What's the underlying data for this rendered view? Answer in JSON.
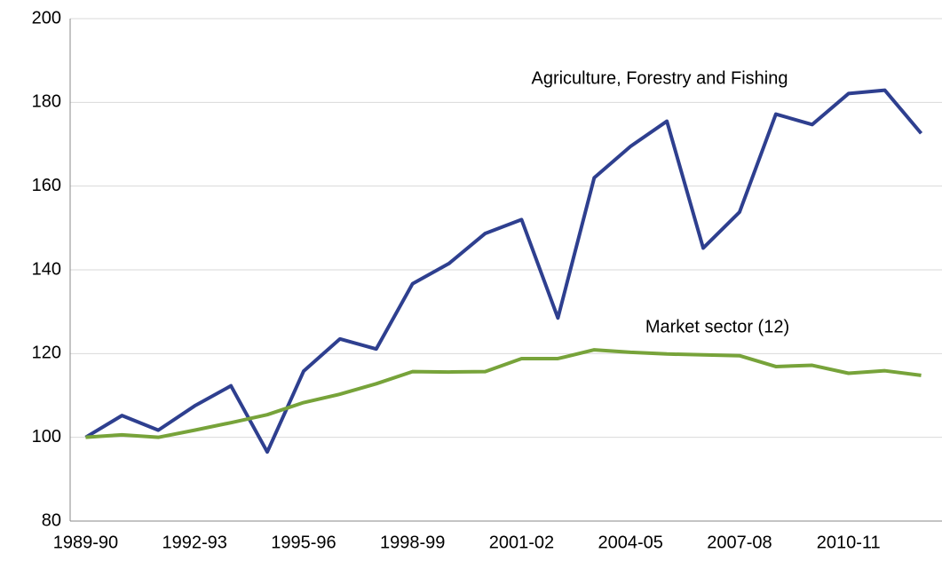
{
  "chart_data": {
    "type": "line",
    "categories": [
      "1989-90",
      null,
      null,
      "1992-93",
      null,
      null,
      "1995-96",
      null,
      null,
      "1998-99",
      null,
      null,
      "2001-02",
      null,
      null,
      "2004-05",
      null,
      null,
      "2007-08",
      null,
      null,
      "2010-11",
      null,
      null
    ],
    "series": [
      {
        "name": "Agriculture, Forestry and Fishing",
        "color": "#2e3f8f",
        "values": [
          100,
          105.2,
          101.7,
          107.5,
          112.3,
          96.5,
          115.8,
          123.5,
          121.1,
          136.7,
          141.5,
          148.7,
          152,
          128.5,
          162,
          169.5,
          175.5,
          145.2,
          153.8,
          177.2,
          174.7,
          182.1,
          182.9,
          172.6
        ]
      },
      {
        "name": "Market sector (12)",
        "color": "#77a33a",
        "values": [
          100,
          100.6,
          100,
          101.7,
          103.5,
          105.4,
          108.3,
          110.3,
          112.8,
          115.7,
          115.6,
          115.7,
          118.8,
          118.8,
          120.9,
          120.3,
          119.9,
          119.7,
          119.5,
          116.9,
          117.2,
          115.3,
          115.9,
          114.8
        ]
      }
    ],
    "ylim": [
      80,
      200
    ],
    "yticks": [
      80,
      100,
      120,
      140,
      160,
      180,
      200
    ],
    "grid": true
  }
}
